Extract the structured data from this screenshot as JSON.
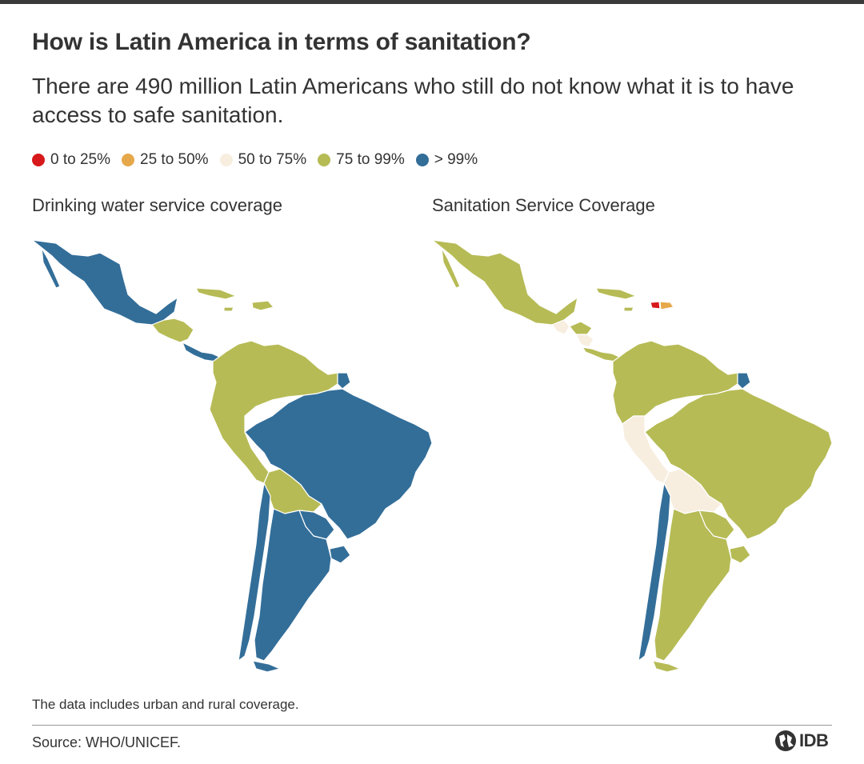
{
  "title": "How is Latin America in terms of sanitation?",
  "subtitle": "There are 490 million Latin Americans who still do not know what it is to have access to safe sanitation.",
  "legend": [
    {
      "label": "0 to 25%",
      "color": "#d7191c"
    },
    {
      "label": "25 to 50%",
      "color": "#e6a84a"
    },
    {
      "label": "50 to 75%",
      "color": "#f8eee0"
    },
    {
      "label": "75 to 99%",
      "color": "#b6bb55"
    },
    {
      "label": "> 99%",
      "color": "#336e99"
    }
  ],
  "maps": {
    "water": {
      "title": "Drinking water service coverage",
      "regions": {
        "mexico": "> 99%",
        "central_america": "75 to 99%",
        "costa_rica_panama": "> 99%",
        "caribbean": "75 to 99%",
        "northern_south_america": "75 to 99%",
        "french_guiana": "> 99%",
        "brazil": "> 99%",
        "bolivia": "75 to 99%",
        "paraguay_uruguay": "> 99%",
        "chile": "> 99%",
        "argentina": "> 99%"
      }
    },
    "sanitation": {
      "title": "Sanitation Service Coverage",
      "regions": {
        "mexico": "75 to 99%",
        "guatemala_nicaragua": "50 to 75%",
        "central_america": "75 to 99%",
        "haiti": "0 to 25%",
        "dominican_republic": "25 to 50%",
        "caribbean": "75 to 99%",
        "northern_south_america": "75 to 99%",
        "french_guiana": "> 99%",
        "peru": "50 to 75%",
        "bolivia": "50 to 75%",
        "brazil": "75 to 99%",
        "chile": "> 99%",
        "argentina_paraguay_uruguay": "75 to 99%"
      }
    }
  },
  "note": "The data includes urban and rural coverage.",
  "source": "Source: WHO/UNICEF.",
  "logo": "IDB"
}
